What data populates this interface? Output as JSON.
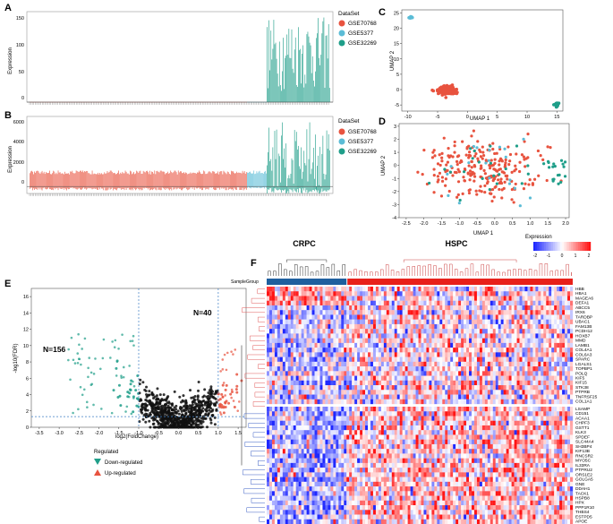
{
  "colors": {
    "gse70768": "#e8533f",
    "gse5377": "#5bbcd6",
    "gse32269": "#1f9e89",
    "down": "#1f9e89",
    "up": "#e8533f",
    "crpc": "#1f5f9e",
    "hspc": "#e8201a"
  },
  "panels": {
    "a": "A",
    "b": "B",
    "c": "C",
    "d": "D",
    "e": "E",
    "f": "F"
  },
  "legend_dataset": {
    "title": "DataSet",
    "items": [
      "GSE70768",
      "GSE5377",
      "GSE32269"
    ]
  },
  "chart_data": [
    {
      "panel": "A",
      "type": "bar",
      "ylabel": "Expression",
      "yticks": [
        "0",
        "50",
        "100",
        "150"
      ],
      "ylim": [
        0,
        170
      ],
      "series": [
        {
          "name": "GSE70768",
          "values_range": [
            0,
            0.4
          ],
          "n": 230
        },
        {
          "name": "GSE5377",
          "values_range": [
            0,
            0.5
          ],
          "n": 21
        },
        {
          "name": "GSE32269",
          "values_range": [
            20,
            160
          ],
          "n": 67
        }
      ]
    },
    {
      "panel": "B",
      "type": "bar",
      "ylabel": "Expression",
      "yticks": [
        "0",
        "2000",
        "4000",
        "6000"
      ],
      "ylim": [
        -700,
        7000
      ],
      "series": [
        {
          "name": "GSE70768",
          "values_range": [
            -400,
            1600
          ],
          "n": 230
        },
        {
          "name": "GSE5377",
          "values_range": [
            -200,
            1600
          ],
          "n": 21
        },
        {
          "name": "GSE32269",
          "values_range": [
            -700,
            6500
          ],
          "n": 67
        }
      ]
    },
    {
      "panel": "C",
      "type": "scatter",
      "xlabel": "UMAP 1",
      "ylabel": "UMAP 2",
      "xticks": [
        "-10",
        "-5",
        "0",
        "5",
        "10",
        "15"
      ],
      "yticks": [
        "-5",
        "0",
        "5",
        "10",
        "15",
        "20",
        "25"
      ],
      "xlim": [
        -11,
        16
      ],
      "ylim": [
        -7,
        26
      ],
      "series": [
        {
          "name": "GSE5377",
          "center": [
            -9.5,
            23.5
          ],
          "spread": [
            0.3,
            0.3
          ],
          "n": 12
        },
        {
          "name": "GSE70768",
          "center": [
            -3.5,
            -0.3
          ],
          "spread": [
            1.3,
            1.2
          ],
          "n": 200
        },
        {
          "name": "GSE32269",
          "center": [
            15,
            -5
          ],
          "spread": [
            0.3,
            0.7
          ],
          "n": 20
        }
      ]
    },
    {
      "panel": "D",
      "type": "scatter",
      "xlabel": "UMAP 1",
      "ylabel": "UMAP 2",
      "xticks": [
        "-2.5",
        "-2.0",
        "-1.5",
        "-1.0",
        "-0.5",
        "0.0",
        "0.5",
        "1.0",
        "1.5",
        "2.0"
      ],
      "yticks": [
        "-4",
        "-3",
        "-2",
        "-1",
        "0",
        "1",
        "2",
        "3"
      ],
      "xlim": [
        -2.7,
        2.1
      ],
      "ylim": [
        -4,
        3.2
      ],
      "series": [
        {
          "name": "GSE70768",
          "n": 240
        },
        {
          "name": "GSE5377",
          "n": 20
        },
        {
          "name": "GSE32269",
          "n": 40
        }
      ]
    },
    {
      "panel": "E",
      "type": "scatter",
      "xlabel": "log2(FoldChange)",
      "ylabel": "-log10(FDR)",
      "xticks": [
        "-3.5",
        "-3.0",
        "-2.5",
        "-2.0",
        "-1.5",
        "-1.0",
        "-0.5",
        "0.0",
        "0.5",
        "1.0",
        "1.5"
      ],
      "yticks": [
        "0",
        "2",
        "4",
        "6",
        "8",
        "10",
        "12",
        "14",
        "16"
      ],
      "xlim": [
        -3.7,
        1.7
      ],
      "ylim": [
        0,
        17
      ],
      "thresholds": {
        "x": [
          -1,
          1
        ],
        "y": 1.3
      },
      "series": [
        {
          "name": "Down-regulated",
          "count": 156
        },
        {
          "name": "Up-regulated",
          "count": 40
        }
      ]
    },
    {
      "panel": "F",
      "type": "heatmap",
      "colorbar": {
        "title": "Expression",
        "ticks": [
          "-2",
          "-1",
          "0",
          "1",
          "2"
        ]
      },
      "row_annotation": "SampleGroup",
      "col_groups": [
        "CRPC",
        "HSPC"
      ],
      "col_group_sizes": [
        30,
        85
      ],
      "genes": [
        "HBB",
        "HBA1",
        "MAGEA6",
        "DEFA1",
        "ABCC5",
        "IRX6",
        "TARDBP",
        "UBAC1",
        "FAM13B",
        "PCDH12",
        "HOXB7",
        "MMD",
        "LAMB1",
        "COL4A1",
        "COL6A3",
        "SPARC",
        "LGALS1",
        "TOPBP1",
        "POLQ",
        "KIF5",
        "KIF15",
        "STK38",
        "PTPRB",
        "TNFRSF25",
        "COL1A1",
        "LSAMP",
        "CD151",
        "ACAA1",
        "CHPF3",
        "GSTT1",
        "KLK3",
        "SPDEF",
        "SLC44A4",
        "SH3BP4",
        "KIF13B",
        "RNCSR2",
        "MYO5C",
        "IL33RA",
        "PTPRU2",
        "ORS1E2",
        "GOLGA5",
        "GNE",
        "DDAH1",
        "TACK1",
        "HSPB8",
        "HPX",
        "PPP1R10",
        "THBS4",
        "ESTPD5",
        "APOE"
      ],
      "split_row": 25
    }
  ],
  "legend_volcano": {
    "title": "Regulated",
    "items": [
      "Down-regulated",
      "Up-regulated"
    ]
  },
  "annotations": {
    "n_down": "N=156",
    "n_up": "N=40"
  }
}
